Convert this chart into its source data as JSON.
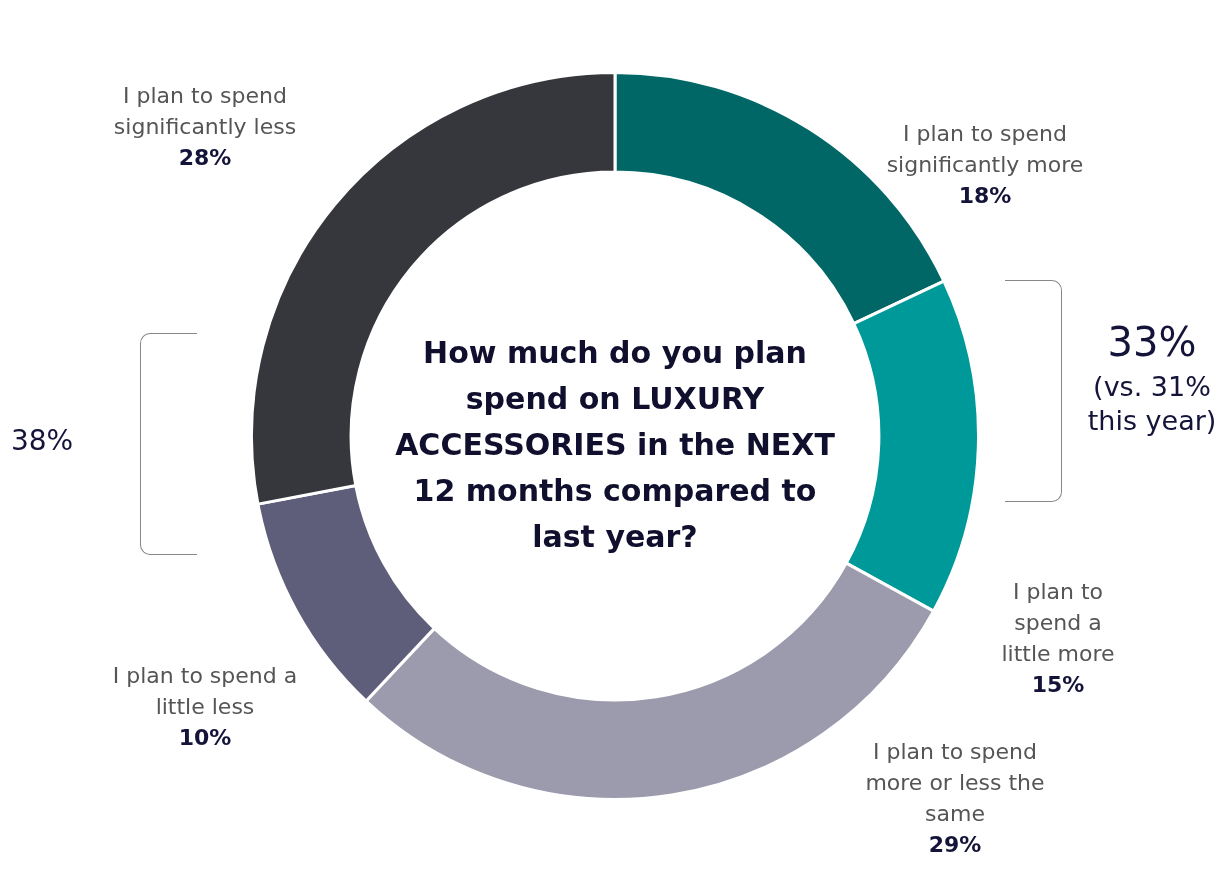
{
  "chart_data": {
    "type": "donut",
    "title": "How much do you plan spend on LUXURY ACCESSORIES in the NEXT 12 months compared to last year?",
    "categories": [
      "I plan to spend significantly more",
      "I plan to spend a little more",
      "I plan to spend more or less the same",
      "I plan to spend a little less",
      "I plan to spend significantly less"
    ],
    "values": [
      18,
      15,
      29,
      10,
      28
    ],
    "value_labels": [
      "18%",
      "15%",
      "29%",
      "10%",
      "28%"
    ],
    "colors": [
      "#006666",
      "#009999",
      "#9b9bad",
      "#5f5e7a",
      "#36373d"
    ],
    "annotations": [
      "33%",
      "(vs. 31% this year)",
      "38%"
    ],
    "legend": false
  }
}
